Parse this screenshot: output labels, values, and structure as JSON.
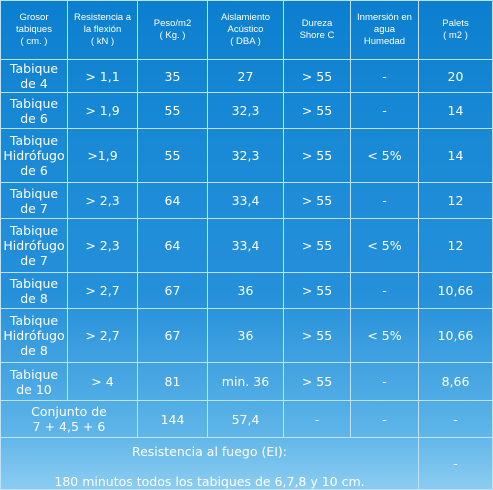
{
  "headers": [
    [
      "Grosor",
      "tabiques",
      "( cm. )"
    ],
    [
      "Resistencia a",
      "la flexión",
      "( kN )"
    ],
    [
      "Peso/m2",
      "( Kg. )"
    ],
    [
      "Aislamiento",
      "Acústico",
      "( DBA )"
    ],
    [
      "Dureza",
      "Shore C"
    ],
    [
      "Inmersión en",
      "agua",
      "Humedad"
    ],
    [
      "Palets",
      "( m2 )"
    ]
  ],
  "rows": [
    {
      "name": [
        "Tabique",
        "de 4"
      ],
      "flexion": "> 1,1",
      "peso": "35",
      "aislamiento": "27",
      "dureza": "> 55",
      "inmersion": "-",
      "palets": "20"
    },
    {
      "name": [
        "Tabique",
        "de 6"
      ],
      "flexion": "> 1,9",
      "peso": "55",
      "aislamiento": "32,3",
      "dureza": "> 55",
      "inmersion": "-",
      "palets": "14"
    },
    {
      "name": [
        "Tabique",
        "Hidrófugo",
        "de 6"
      ],
      "flexion": ">1,9",
      "peso": "55",
      "aislamiento": "32,3",
      "dureza": "> 55",
      "inmersion": "< 5%",
      "palets": "14"
    },
    {
      "name": [
        "Tabique",
        "de 7"
      ],
      "flexion": "> 2,3",
      "peso": "64",
      "aislamiento": "33,4",
      "dureza": "> 55",
      "inmersion": "-",
      "palets": "12"
    },
    {
      "name": [
        "Tabique",
        "Hidrófugo",
        "de 7"
      ],
      "flexion": "> 2,3",
      "peso": "64",
      "aislamiento": "33,4",
      "dureza": "> 55",
      "inmersion": "< 5%",
      "palets": "12"
    },
    {
      "name": [
        "Tabique",
        "de 8"
      ],
      "flexion": "> 2,7",
      "peso": "67",
      "aislamiento": "36",
      "dureza": "> 55",
      "inmersion": "-",
      "palets": "10,66"
    },
    {
      "name": [
        "Tabique",
        "Hidrófugo",
        "de 8"
      ],
      "flexion": "> 2,7",
      "peso": "67",
      "aislamiento": "36",
      "dureza": "> 55",
      "inmersion": "< 5%",
      "palets": "10,66"
    },
    {
      "name": [
        "Tabique",
        "de 10"
      ],
      "flexion": "> 4",
      "peso": "81",
      "aislamiento": "min. 36",
      "dureza": "> 55",
      "inmersion": "-",
      "palets": "8,66"
    }
  ],
  "conjunto": {
    "name": [
      "Conjunto de",
      "7 + 4,5 + 6"
    ],
    "peso": "144",
    "aislamiento": "57,4",
    "dureza": "-",
    "inmersion": "-",
    "palets": "-"
  },
  "fire": {
    "title": "Resistencia al fuego (EI):",
    "body": "180 minutos todos los tabiques de 6,7,8 y 10 cm.",
    "palets": "-"
  }
}
